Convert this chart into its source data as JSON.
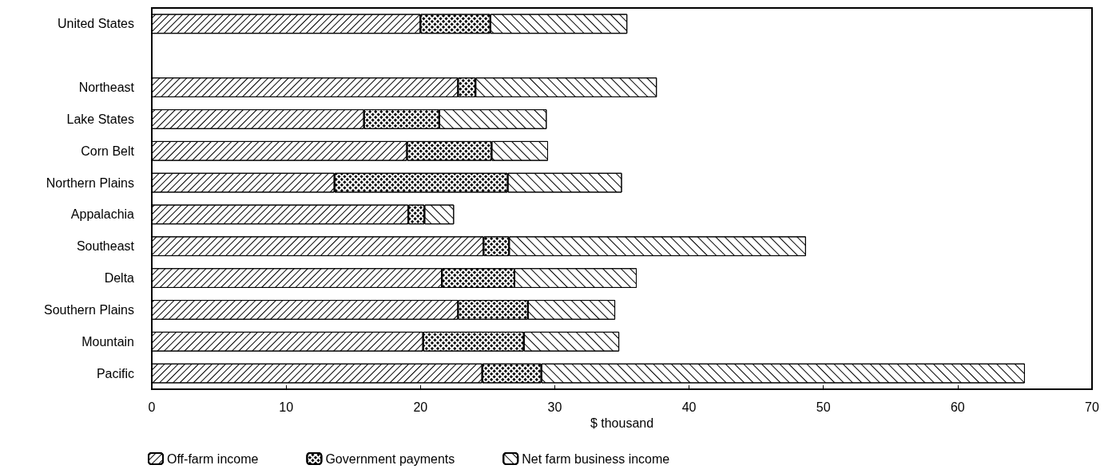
{
  "chart_data": {
    "type": "bar",
    "orientation": "horizontal",
    "stacked": true,
    "xlabel": "$ thousand",
    "categories": [
      "United States",
      null,
      "Northeast",
      "Lake States",
      "Corn Belt",
      "Northern Plains",
      "Appalachia",
      "Southeast",
      "Delta",
      "Southern Plains",
      "Mountain",
      "Pacific"
    ],
    "series": [
      {
        "name": "Off-farm income",
        "color": "#000000",
        "values": [
          20.0,
          null,
          22.8,
          15.8,
          19.0,
          13.6,
          19.1,
          24.7,
          21.6,
          22.8,
          20.2,
          24.6
        ]
      },
      {
        "name": "Government payments",
        "color": "#000000",
        "values": [
          5.2,
          null,
          1.3,
          5.6,
          6.3,
          12.9,
          1.2,
          1.9,
          5.4,
          5.2,
          7.5,
          4.4
        ]
      },
      {
        "name": "Net farm business income",
        "color": "#000000",
        "values": [
          10.2,
          null,
          13.5,
          8.0,
          4.2,
          8.5,
          2.2,
          22.1,
          9.1,
          6.5,
          7.1,
          36.0
        ]
      }
    ],
    "xlim": [
      0,
      70
    ],
    "xticks": [
      0,
      10,
      20,
      30,
      40,
      50,
      60,
      70
    ],
    "grid": false,
    "legend": "bottom left"
  }
}
